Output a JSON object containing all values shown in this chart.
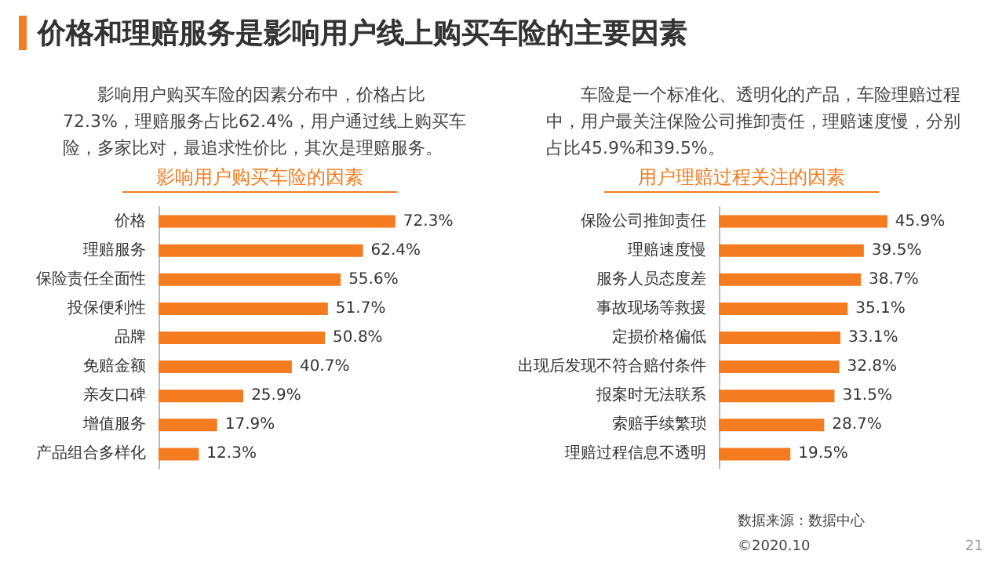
{
  "chart_data": [
    {
      "type": "other",
      "title": "价格和理赔服务是影响用户线上购买车险的主要因素",
      "annotations": [
        "影响用户购买车险的因素分布中，价格占比72.3%，理赔服务占比62.4%，用户通过线上购买车险，多家比对，最追求性价比，其次是理赔服务。",
        "车险是一个标准化、透明化的产品，车险理赔过程中，用户最关注保险公司推卸责任，理赔速度慢，分别占比45.9%和39.5%。",
        "数据来源：数据中心",
        "©2020.10",
        "21"
      ]
    },
    {
      "type": "bar",
      "orientation": "horizontal",
      "title": "影响用户购买车险的因素",
      "categories": [
        "价格",
        "理赔服务",
        "保险责任全面性",
        "投保便利性",
        "品牌",
        "免赔金额",
        "亲友口碑",
        "增值服务",
        "产品组合多样化"
      ],
      "values": [
        72.3,
        62.4,
        55.6,
        51.7,
        50.8,
        40.7,
        25.9,
        17.9,
        12.3
      ],
      "value_labels": [
        "72.3%",
        "62.4%",
        "55.6%",
        "51.7%",
        "50.8%",
        "40.7%",
        "25.9%",
        "17.9%",
        "12.3%"
      ],
      "color": "#f47b20",
      "tick_labels": "y"
    },
    {
      "type": "bar",
      "orientation": "horizontal",
      "title": "用户理赔过程关注的因素",
      "categories": [
        "保险公司推卸责任",
        "理赔速度慢",
        "服务人员态度差",
        "事故现场等救援",
        "定损价格偏低",
        "出现后发现不符合赔付条件",
        "报案时无法联系",
        "索赔手续繁琐",
        "理赔过程信息不透明"
      ],
      "values": [
        45.9,
        39.5,
        38.7,
        35.1,
        33.1,
        32.8,
        31.5,
        28.7,
        19.5
      ],
      "value_labels": [
        "45.9%",
        "39.5%",
        "38.7%",
        "35.1%",
        "33.1%",
        "32.8%",
        "31.5%",
        "28.7%",
        "19.5%"
      ],
      "color": "#f47b20",
      "tick_labels": "y"
    }
  ]
}
